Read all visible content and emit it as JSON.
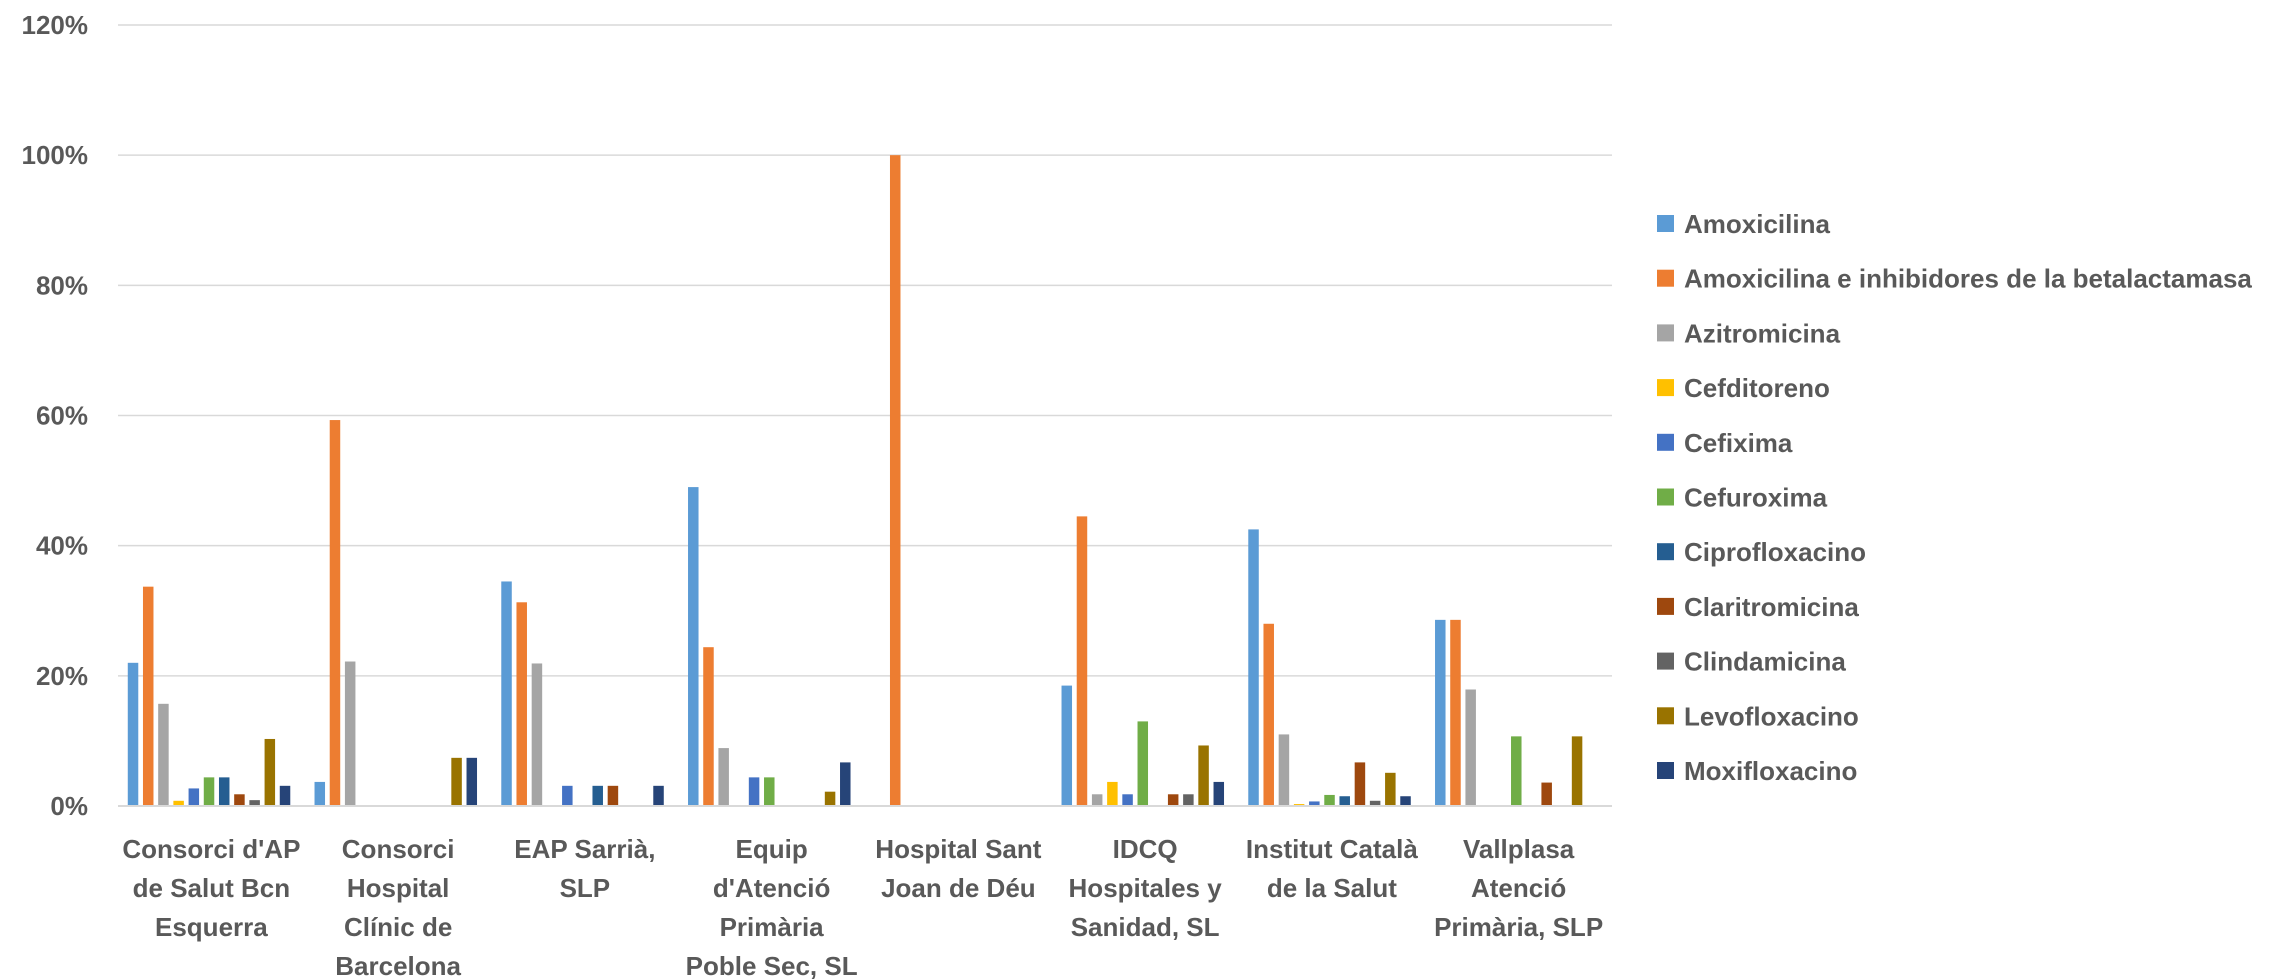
{
  "chart_data": {
    "type": "bar",
    "title": "",
    "xlabel": "",
    "ylabel": "",
    "ylim": [
      0,
      120
    ],
    "y_ticks": [
      0,
      20,
      40,
      60,
      80,
      100,
      120
    ],
    "y_tick_labels": [
      "0%",
      "20%",
      "40%",
      "60%",
      "80%",
      "100%",
      "120%"
    ],
    "y_unit": "%",
    "grid": true,
    "legend_position": "right",
    "categories": [
      [
        "Consorci d'AP",
        "de Salut Bcn",
        "Esquerra"
      ],
      [
        "Consorci",
        "Hospital",
        "Clínic de",
        "Barcelona"
      ],
      [
        "EAP Sarrià,",
        "SLP"
      ],
      [
        "Equip",
        "d'Atenció",
        "Primària",
        "Poble Sec, SL"
      ],
      [
        "Hospital Sant",
        "Joan de Déu"
      ],
      [
        "IDCQ",
        "Hospitales y",
        "Sanidad, SL"
      ],
      [
        "Institut Català",
        "de la Salut"
      ],
      [
        "Vallplasa",
        "Atenció",
        "Primària, SLP"
      ]
    ],
    "series": [
      {
        "name": "Amoxicilina",
        "color": "#5B9BD5",
        "values": [
          22,
          3.7,
          34.5,
          49,
          0,
          18.5,
          42.5,
          28.6
        ]
      },
      {
        "name": "Amoxicilina e inhibidores de la betalactamasa",
        "color": "#ED7D31",
        "values": [
          33.7,
          59.3,
          31.3,
          24.4,
          100,
          44.5,
          28,
          28.6
        ]
      },
      {
        "name": "Azitromicina",
        "color": "#A5A5A5",
        "values": [
          15.7,
          22.2,
          21.9,
          8.9,
          0,
          1.8,
          11,
          17.9
        ]
      },
      {
        "name": "Cefditoreno",
        "color": "#FFC000",
        "values": [
          0.8,
          0,
          0,
          0,
          0,
          3.7,
          0.3,
          0
        ]
      },
      {
        "name": "Cefixima",
        "color": "#4472C4",
        "values": [
          2.7,
          0,
          3.1,
          4.4,
          0,
          1.8,
          0.7,
          0
        ]
      },
      {
        "name": "Cefuroxima",
        "color": "#70AD47",
        "values": [
          4.4,
          0,
          0,
          4.4,
          0,
          13,
          1.7,
          10.7
        ]
      },
      {
        "name": "Ciprofloxacino",
        "color": "#255E91",
        "values": [
          4.4,
          0,
          3.1,
          0,
          0,
          0,
          1.5,
          0
        ]
      },
      {
        "name": "Claritromicina",
        "color": "#9E480E",
        "values": [
          1.8,
          0,
          3.1,
          0,
          0,
          1.8,
          6.7,
          3.6
        ]
      },
      {
        "name": "Clindamicina",
        "color": "#636363",
        "values": [
          0.9,
          0,
          0,
          0,
          0,
          1.8,
          0.8,
          0
        ]
      },
      {
        "name": "Levofloxacino",
        "color": "#997300",
        "values": [
          10.3,
          7.4,
          0,
          2.2,
          0,
          9.3,
          5.1,
          10.7
        ]
      },
      {
        "name": "Moxifloxacino",
        "color": "#264478",
        "values": [
          3.1,
          7.4,
          3.1,
          6.7,
          0,
          3.7,
          1.5,
          0
        ]
      }
    ]
  }
}
